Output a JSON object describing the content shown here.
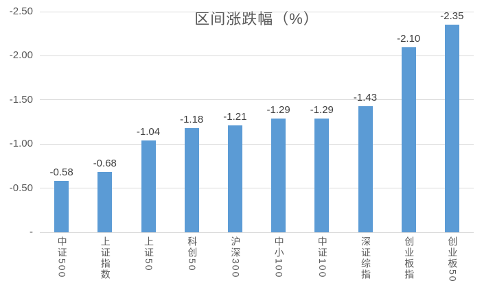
{
  "chart_data": {
    "type": "bar",
    "title": "区间涨跌幅（%）",
    "categories": [
      "中证500",
      "上证指数",
      "上证50",
      "科创50",
      "沪深300",
      "中小100",
      "中证100",
      "深证综指",
      "创业板指",
      "创业板50"
    ],
    "values": [
      -0.58,
      -0.68,
      -1.04,
      -1.18,
      -1.21,
      -1.29,
      -1.29,
      -1.43,
      -2.1,
      -2.35
    ],
    "data_labels": [
      "-0.58",
      "-0.68",
      "-1.04",
      "-1.18",
      "-1.21",
      "-1.29",
      "-1.29",
      "-1.43",
      "-2.10",
      "-2.35"
    ],
    "xlabel": "",
    "ylabel": "",
    "ylim": [
      0,
      -2.5
    ],
    "axis_inverted": true,
    "grid": true,
    "legend": "none",
    "yticks": [
      {
        "value": 0.0,
        "label": "-"
      },
      {
        "value": -0.5,
        "label": "-0.50"
      },
      {
        "value": -1.0,
        "label": "-1.00"
      },
      {
        "value": -1.5,
        "label": "-1.50"
      },
      {
        "value": -2.0,
        "label": "-2.00"
      },
      {
        "value": -2.5,
        "label": "-2.50"
      }
    ],
    "colors": {
      "bar": "#5B9BD5",
      "gridline": "#D9D9D9",
      "baseline": "#D9D9D9",
      "title_text": "#595959",
      "axis_text": "#595959",
      "data_label_text": "#404040",
      "background": "#FFFFFF"
    }
  }
}
